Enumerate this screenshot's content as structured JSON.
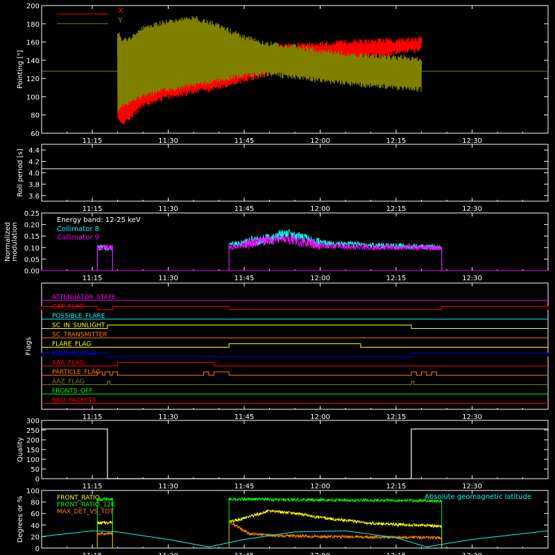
{
  "chart_data": [
    {
      "id": "pointing",
      "type": "line",
      "ylabel": "Pointing [\"]",
      "ylim": [
        60,
        200
      ],
      "yticks": [
        60,
        80,
        100,
        120,
        140,
        160,
        180,
        200
      ],
      "xticks": [
        "11:15",
        "11:30",
        "11:45",
        "12:00",
        "12:15",
        "12:30"
      ],
      "legend": {
        "placement": "top-left",
        "entries": [
          {
            "name": "X",
            "color": "#ff0000"
          },
          {
            "name": "Y",
            "color": "#808000"
          }
        ]
      },
      "series": [
        {
          "name": "X",
          "color": "#ff0000",
          "x": [
            "11:20",
            "11:21",
            "11:25",
            "11:30",
            "11:35",
            "11:40",
            "11:45",
            "11:50",
            "11:55",
            "12:00",
            "12:05",
            "12:10",
            "12:15",
            "12:20"
          ],
          "upper": [
            165,
            150,
            158,
            165,
            166,
            163,
            158,
            155,
            156,
            158,
            160,
            161,
            162,
            163
          ],
          "lower": [
            75,
            70,
            90,
            100,
            105,
            110,
            118,
            125,
            128,
            135,
            140,
            145,
            148,
            152
          ]
        },
        {
          "name": "Y",
          "color": "#808000",
          "x": [
            "11:20",
            "11:21",
            "11:25",
            "11:30",
            "11:35",
            "11:40",
            "11:45",
            "11:50",
            "11:55",
            "12:00",
            "12:05",
            "12:10",
            "12:15",
            "12:20"
          ],
          "upper": [
            172,
            160,
            175,
            183,
            187,
            178,
            165,
            158,
            155,
            150,
            147,
            145,
            143,
            142
          ],
          "lower": [
            85,
            90,
            100,
            108,
            112,
            118,
            123,
            125,
            122,
            118,
            115,
            112,
            110,
            108
          ]
        }
      ],
      "reference_line": {
        "value": 128,
        "color": "#808000"
      }
    },
    {
      "id": "roll",
      "type": "line",
      "ylabel": "Roll period [s]",
      "ylim": [
        3.5,
        4.5
      ],
      "yticks": [
        3.6,
        3.8,
        4.0,
        4.2,
        4.4
      ],
      "ytick_labels": [
        "3.6",
        "3.8",
        "4.0",
        "4.2",
        "4.4"
      ],
      "xticks": [
        "11:15",
        "11:30",
        "11:45",
        "12:00",
        "12:15",
        "12:30"
      ],
      "series": [
        {
          "color": "#ffffff",
          "x": [
            "11:05",
            "12:45"
          ],
          "y": [
            4.07,
            4.07
          ]
        }
      ]
    },
    {
      "id": "modulation",
      "type": "line",
      "ylabel": "Normalized modulation",
      "ylim": [
        0,
        0.25
      ],
      "yticks": [
        0,
        0.05,
        0.1,
        0.15,
        0.2,
        0.25
      ],
      "ytick_labels": [
        "0.00",
        "0.05",
        "0.10",
        "0.15",
        "0.20",
        "0.25"
      ],
      "xticks": [
        "11:15",
        "11:30",
        "11:45",
        "12:00",
        "12:15",
        "12:30"
      ],
      "annotation": "Energy band: 12-25 keV",
      "legend": {
        "placement": "top-left",
        "entries": [
          {
            "name": "Collimator 8",
            "color": "#00ffff"
          },
          {
            "name": "Collimator 9",
            "color": "#ff00ff"
          }
        ]
      },
      "series": [
        {
          "name": "Collimator 8",
          "color": "#00ffff",
          "segments": [
            {
              "x": [
                "11:16",
                "11:19"
              ],
              "y": [
                0.1,
                0.1
              ]
            },
            {
              "x": [
                "11:42",
                "11:50",
                "11:53",
                "12:00",
                "12:10",
                "12:24"
              ],
              "y": [
                0.11,
                0.14,
                0.16,
                0.12,
                0.11,
                0.1
              ]
            }
          ]
        },
        {
          "name": "Collimator 9",
          "color": "#ff00ff",
          "segments": [
            {
              "x": [
                "11:16",
                "11:19"
              ],
              "y": [
                0.1,
                0.1
              ]
            },
            {
              "x": [
                "11:42",
                "11:50",
                "11:53",
                "12:00",
                "12:10",
                "12:24"
              ],
              "y": [
                0.1,
                0.13,
                0.14,
                0.11,
                0.1,
                0.1
              ]
            }
          ]
        }
      ]
    },
    {
      "id": "flags",
      "type": "line",
      "ylabel": "Flags",
      "xticks": [
        "11:15",
        "11:30",
        "11:45",
        "12:00",
        "12:15",
        "12:30"
      ],
      "flags": [
        {
          "name": "ATTENUATOR_STATE",
          "color": "#ff00ff",
          "on": []
        },
        {
          "name": "GAP_FLAG",
          "color": "#ff0000",
          "on": [
            [
              "11:05",
              "11:16"
            ],
            [
              "11:19",
              "11:42"
            ],
            [
              "12:24",
              "12:45"
            ]
          ]
        },
        {
          "name": "POSSIBLE_FLARE",
          "color": "#00ffff",
          "on": []
        },
        {
          "name": "SC_IN_SUNLIGHT",
          "color": "#ffff00",
          "on": [
            [
              "11:18",
              "12:18"
            ]
          ]
        },
        {
          "name": "SC_TRANSMITTER",
          "color": "#ff8000",
          "on": []
        },
        {
          "name": "FLARE_FLAG",
          "color": "#ffff00",
          "on": [
            [
              "11:42",
              "12:08"
            ]
          ]
        },
        {
          "name": "ECLIPSE_FLAG",
          "color": "#0000ff",
          "on": [
            [
              "11:05",
              "11:18"
            ],
            [
              "12:18",
              "12:45"
            ]
          ]
        },
        {
          "name": "SAA_FLAG",
          "color": "#ff0000",
          "on": [
            [
              "11:20",
              "11:39"
            ]
          ]
        },
        {
          "name": "PARTICLE_FLAG",
          "color": "#ff8000",
          "on": [
            [
              "11:16",
              "11:17"
            ],
            [
              "11:17.5",
              "11:18.5"
            ],
            [
              "11:19",
              "11:20"
            ],
            [
              "11:37",
              "11:38"
            ],
            [
              "11:39",
              "11:42"
            ],
            [
              "12:18",
              "12:19"
            ],
            [
              "12:20",
              "12:21"
            ],
            [
              "12:22",
              "12:23"
            ]
          ]
        },
        {
          "name": "AAZ_FLAG",
          "color": "#808000",
          "on": [
            [
              "11:18",
              "11:18.5"
            ],
            [
              "12:18",
              "12:18.5"
            ]
          ]
        },
        {
          "name": "FRONTS_OFF",
          "color": "#00ff00",
          "on": []
        },
        {
          "name": "BAD_PACKETS",
          "color": "#ff0000",
          "on": []
        }
      ]
    },
    {
      "id": "quality",
      "type": "line",
      "ylabel": "Quality",
      "ylim": [
        0,
        300
      ],
      "yticks": [
        0,
        50,
        100,
        150,
        200,
        250,
        300
      ],
      "xticks": [
        "11:15",
        "11:30",
        "11:45",
        "12:00",
        "12:15",
        "12:30"
      ],
      "series": [
        {
          "color": "#ffffff",
          "x": [
            "11:05",
            "11:18",
            "11:18",
            "12:18",
            "12:18",
            "12:45"
          ],
          "y": [
            256,
            256,
            0,
            0,
            256,
            256
          ]
        }
      ]
    },
    {
      "id": "ratios",
      "type": "line",
      "ylabel": "Degrees or %",
      "ylim": [
        0,
        100
      ],
      "yticks": [
        0,
        20,
        40,
        60,
        80,
        100
      ],
      "xticks": [
        "11:15",
        "11:30",
        "11:45",
        "12:00",
        "12:15",
        "12:30"
      ],
      "annotation": "Absolute geomagnetic latitude",
      "annotation_color": "#00ffff",
      "legend": {
        "placement": "top-left",
        "entries": [
          {
            "name": "FRONT_RATIO",
            "color": "#ffff00"
          },
          {
            "name": "FRONT_RATIO_12K",
            "color": "#00ff00"
          },
          {
            "name": "MAX_DET_VS_TOT",
            "color": "#ff8000"
          }
        ]
      },
      "series": [
        {
          "name": "FRONT_RATIO",
          "color": "#ffff00",
          "segments": [
            {
              "x": [
                "11:16",
                "11:19"
              ],
              "y": [
                43,
                45
              ]
            },
            {
              "x": [
                "11:42",
                "11:45",
                "11:50",
                "11:55",
                "12:00",
                "12:10",
                "12:24"
              ],
              "y": [
                45,
                52,
                65,
                60,
                53,
                43,
                38
              ]
            }
          ]
        },
        {
          "name": "FRONT_RATIO_12K",
          "color": "#00ff00",
          "segments": [
            {
              "x": [
                "11:16",
                "11:19"
              ],
              "y": [
                84,
                85
              ]
            },
            {
              "x": [
                "11:42",
                "11:55",
                "12:10",
                "12:24"
              ],
              "y": [
                85,
                84,
                83,
                82
              ]
            }
          ]
        },
        {
          "name": "MAX_DET_VS_TOT",
          "color": "#ff8000",
          "segments": [
            {
              "x": [
                "11:16",
                "11:19"
              ],
              "y": [
                25,
                25
              ]
            },
            {
              "x": [
                "11:42",
                "11:44",
                "11:46",
                "11:50",
                "12:00",
                "12:24"
              ],
              "y": [
                45,
                35,
                25,
                22,
                20,
                18
              ]
            }
          ]
        },
        {
          "name": "Absolute geomagnetic latitude",
          "color": "#00ffff",
          "x": [
            "11:05",
            "11:15",
            "11:20",
            "11:30",
            "11:38",
            "11:45",
            "11:55",
            "12:05",
            "12:15",
            "12:21",
            "12:30",
            "12:45"
          ],
          "y": [
            20,
            30,
            28,
            15,
            2,
            15,
            28,
            30,
            18,
            2,
            15,
            30
          ]
        }
      ]
    }
  ]
}
